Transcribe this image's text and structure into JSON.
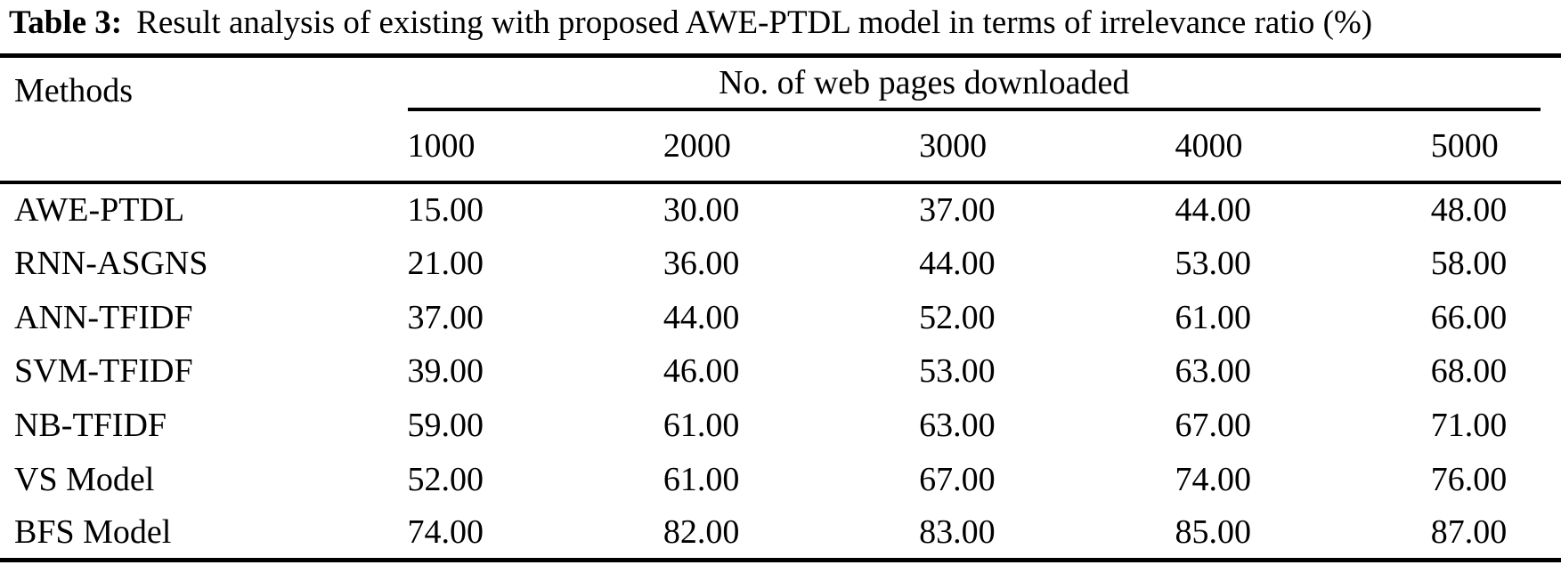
{
  "title": {
    "label": "Table 3:",
    "text": "Result analysis of existing with proposed AWE-PTDL model in terms of irrelevance ratio (%)"
  },
  "table": {
    "methods_header": "Methods",
    "spanner_header": "No. of web pages downloaded",
    "page_counts": [
      "1000",
      "2000",
      "3000",
      "4000",
      "5000"
    ],
    "rows": [
      {
        "method": "AWE-PTDL",
        "values": [
          "15.00",
          "30.00",
          "37.00",
          "44.00",
          "48.00"
        ]
      },
      {
        "method": "RNN-ASGNS",
        "values": [
          "21.00",
          "36.00",
          "44.00",
          "53.00",
          "58.00"
        ]
      },
      {
        "method": "ANN-TFIDF",
        "values": [
          "37.00",
          "44.00",
          "52.00",
          "61.00",
          "66.00"
        ]
      },
      {
        "method": "SVM-TFIDF",
        "values": [
          "39.00",
          "46.00",
          "53.00",
          "63.00",
          "68.00"
        ]
      },
      {
        "method": "NB-TFIDF",
        "values": [
          "59.00",
          "61.00",
          "63.00",
          "67.00",
          "71.00"
        ]
      },
      {
        "method": "VS Model",
        "values": [
          "52.00",
          "61.00",
          "67.00",
          "74.00",
          "76.00"
        ]
      },
      {
        "method": "BFS Model",
        "values": [
          "74.00",
          "82.00",
          "83.00",
          "85.00",
          "87.00"
        ]
      }
    ]
  },
  "colors": {
    "text": "#000000",
    "background": "#ffffff",
    "rule": "#000000"
  }
}
